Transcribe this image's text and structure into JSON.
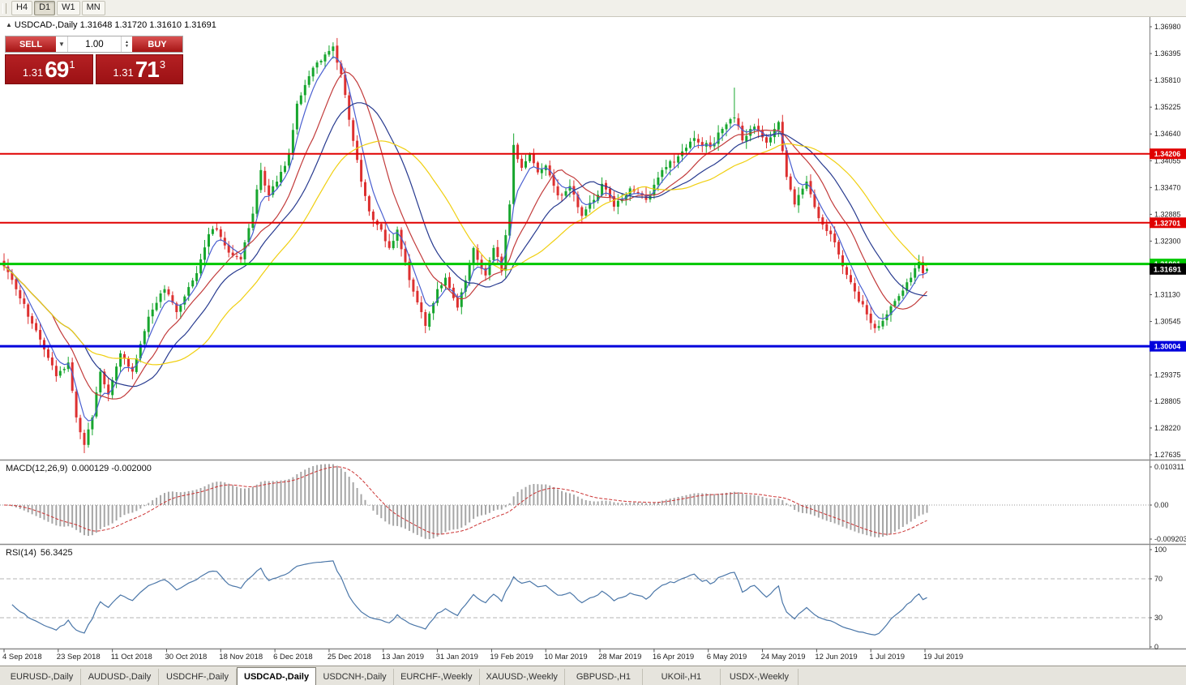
{
  "toolbar": {
    "timeframes": [
      {
        "label": "H4",
        "active": false
      },
      {
        "label": "D1",
        "active": true
      },
      {
        "label": "W1",
        "active": false
      },
      {
        "label": "MN",
        "active": false
      }
    ]
  },
  "chart_header": {
    "symbol": "USDCAD-,Daily",
    "ohlc_text": "1.31648  1.31720  1.31610  1.31691"
  },
  "one_click_trading": {
    "sell_label": "SELL",
    "buy_label": "BUY",
    "volume": "1.00",
    "sell_price_big": "1.31",
    "sell_price_pips": "69",
    "sell_price_sup": "1",
    "buy_price_big": "1.31",
    "buy_price_pips": "71",
    "buy_price_sup": "3"
  },
  "price_axis": {
    "labels": [
      "1.36980",
      "1.36395",
      "1.35810",
      "1.35225",
      "1.34640",
      "1.34055",
      "1.33470",
      "1.32885",
      "1.32300",
      "1.31715",
      "1.31130",
      "1.30545",
      "1.29960",
      "1.29375",
      "1.28805",
      "1.28220",
      "1.27635"
    ]
  },
  "current_price": {
    "price": 1.31691,
    "label": "1.31691"
  },
  "macd_panel": {
    "title": "MACD(12,26,9)",
    "values": "0.000129 -0.002000",
    "axis_labels": [
      "0.010311",
      "0.00",
      "-0.0092030"
    ]
  },
  "rsi_panel": {
    "title": "RSI(14)",
    "value": "56.3425",
    "axis_labels": [
      "100",
      "70",
      "30",
      "0"
    ]
  },
  "date_axis": {
    "labels": [
      {
        "label": "4 Sep 2018",
        "day": 0
      },
      {
        "label": "23 Sep 2018",
        "day": 13.5
      },
      {
        "label": "11 Oct 2018",
        "day": 27
      },
      {
        "label": "30 Oct 2018",
        "day": 40.5
      },
      {
        "label": "18 Nov 2018",
        "day": 54
      },
      {
        "label": "6 Dec 2018",
        "day": 67.5
      },
      {
        "label": "25 Dec 2018",
        "day": 81
      },
      {
        "label": "13 Jan 2019",
        "day": 94.5
      },
      {
        "label": "31 Jan 2019",
        "day": 108
      },
      {
        "label": "19 Feb 2019",
        "day": 121.5
      },
      {
        "label": "10 Mar 2019",
        "day": 135
      },
      {
        "label": "28 Mar 2019",
        "day": 148.5
      },
      {
        "label": "16 Apr 2019",
        "day": 162
      },
      {
        "label": "6 May 2019",
        "day": 175.5
      },
      {
        "label": "24 May 2019",
        "day": 189
      },
      {
        "label": "12 Jun 2019",
        "day": 202.5
      },
      {
        "label": "1 Jul 2019",
        "day": 216
      },
      {
        "label": "19 Jul 2019",
        "day": 229.5
      }
    ]
  },
  "symbol_tabs": {
    "active_index": 3,
    "tabs": [
      {
        "label": "EURUSD-,Daily"
      },
      {
        "label": "AUDUSD-,Daily"
      },
      {
        "label": "USDCHF-,Daily"
      },
      {
        "label": "USDCAD-,Daily"
      },
      {
        "label": "USDCNH-,Daily"
      },
      {
        "label": "EURCHF-,Weekly"
      },
      {
        "label": "XAUUSD-,Weekly"
      },
      {
        "label": "GBPUSD-,H1"
      },
      {
        "label": "UKOil-,H1"
      },
      {
        "label": "USDX-,Weekly"
      }
    ]
  },
  "chart_data": {
    "type": "candlestick",
    "symbol": "USDCAD",
    "timeframe": "Daily",
    "bars_total": 231,
    "price_axis_top": 1.3698,
    "price_axis_bottom": 1.27635,
    "current_bar_ohlc": {
      "open": 1.31648,
      "high": 1.3172,
      "low": 1.3161,
      "close": 1.31691
    },
    "close_anchors": [
      [
        0,
        1.3175
      ],
      [
        4,
        1.3105
      ],
      [
        8,
        1.3035
      ],
      [
        11,
        1.2975
      ],
      [
        13,
        1.2935
      ],
      [
        16,
        1.2965
      ],
      [
        18,
        1.2845
      ],
      [
        20,
        1.2785
      ],
      [
        22,
        1.2845
      ],
      [
        24,
        1.2945
      ],
      [
        26,
        1.2895
      ],
      [
        29,
        1.2985
      ],
      [
        32,
        1.2945
      ],
      [
        36,
        1.3065
      ],
      [
        40,
        1.3125
      ],
      [
        43,
        1.3075
      ],
      [
        48,
        1.316
      ],
      [
        51,
        1.3245
      ],
      [
        53,
        1.3255
      ],
      [
        56,
        1.3205
      ],
      [
        59,
        1.319
      ],
      [
        62,
        1.329
      ],
      [
        64,
        1.3385
      ],
      [
        66,
        1.333
      ],
      [
        68,
        1.336
      ],
      [
        71,
        1.342
      ],
      [
        73,
        1.353
      ],
      [
        76,
        1.359
      ],
      [
        78,
        1.362
      ],
      [
        81,
        1.3645
      ],
      [
        82,
        1.3655
      ],
      [
        84,
        1.3595
      ],
      [
        86,
        1.3495
      ],
      [
        89,
        1.336
      ],
      [
        91,
        1.3295
      ],
      [
        94,
        1.3255
      ],
      [
        96,
        1.3215
      ],
      [
        98,
        1.3255
      ],
      [
        101,
        1.3145
      ],
      [
        104,
        1.3075
      ],
      [
        105,
        1.3045
      ],
      [
        108,
        1.3125
      ],
      [
        110,
        1.315
      ],
      [
        113,
        1.3085
      ],
      [
        117,
        1.3215
      ],
      [
        120,
        1.3155
      ],
      [
        122,
        1.3215
      ],
      [
        124,
        1.3165
      ],
      [
        126,
        1.331
      ],
      [
        127,
        1.344
      ],
      [
        129,
        1.339
      ],
      [
        131,
        1.342
      ],
      [
        133,
        1.338
      ],
      [
        135,
        1.3395
      ],
      [
        138,
        1.333
      ],
      [
        141,
        1.335
      ],
      [
        144,
        1.3285
      ],
      [
        147,
        1.332
      ],
      [
        149,
        1.3355
      ],
      [
        152,
        1.3305
      ],
      [
        156,
        1.3345
      ],
      [
        160,
        1.332
      ],
      [
        164,
        1.3385
      ],
      [
        168,
        1.3415
      ],
      [
        172,
        1.3455
      ],
      [
        176,
        1.3435
      ],
      [
        179,
        1.3475
      ],
      [
        182,
        1.35
      ],
      [
        184,
        1.345
      ],
      [
        187,
        1.348
      ],
      [
        190,
        1.3445
      ],
      [
        193,
        1.349
      ],
      [
        195,
        1.337
      ],
      [
        197,
        1.331
      ],
      [
        200,
        1.336
      ],
      [
        203,
        1.328
      ],
      [
        206,
        1.3245
      ],
      [
        209,
        1.3175
      ],
      [
        212,
        1.312
      ],
      [
        215,
        1.307
      ],
      [
        217,
        1.304
      ],
      [
        220,
        1.307
      ],
      [
        223,
        1.311
      ],
      [
        226,
        1.315
      ],
      [
        228,
        1.3185
      ],
      [
        229,
        1.316
      ],
      [
        230,
        1.31691
      ]
    ],
    "wick_overrides": {
      "20": {
        "low": 1.2767
      },
      "82": {
        "high": 1.3664
      },
      "127": {
        "high": 1.3465
      },
      "182": {
        "high": 1.3565
      },
      "228": {
        "high": 1.32
      }
    },
    "candle_colors": {
      "bull": "#17a62e",
      "bear": "#dd3030"
    },
    "moving_averages": [
      {
        "period": 5,
        "type": "ema",
        "color": "#4a5fd0"
      },
      {
        "period": 13,
        "type": "sma",
        "color": "#c23b3b"
      },
      {
        "period": 21,
        "type": "sma",
        "color": "#273a8f"
      },
      {
        "period": 34,
        "type": "sma",
        "color": "#f0cf10"
      }
    ],
    "horizontal_lines": [
      {
        "price": 1.34206,
        "label": "1.34206",
        "color": "#e00000",
        "width": 2
      },
      {
        "price": 1.32701,
        "label": "1.32701",
        "color": "#e00000",
        "width": 2
      },
      {
        "price": 1.31801,
        "label": "1.31801",
        "color": "#00c800",
        "width": 3
      },
      {
        "price": 1.30004,
        "label": "1.30004",
        "color": "#0000dc",
        "width": 3
      }
    ],
    "macd": {
      "fast": 12,
      "slow": 26,
      "signal_period": 9,
      "axis_max": 0.010311,
      "axis_min": -0.009203,
      "histogram_color": "#a6a6a6",
      "signal_color": "#cc3333",
      "current_value": 0.000129,
      "current_signal": -0.002
    },
    "rsi": {
      "period": 14,
      "color": "#4a76a8",
      "levels": [
        70,
        30
      ],
      "current_value": 56.3425
    }
  }
}
